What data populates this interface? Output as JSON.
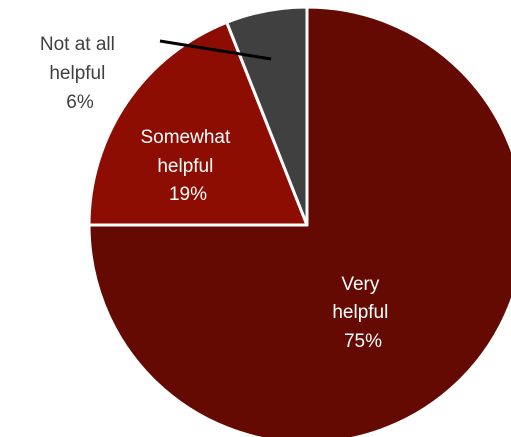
{
  "chart_data": {
    "type": "pie",
    "title": "",
    "start": "12 o'clock",
    "direction": "clockwise",
    "slices": [
      {
        "label_lines": [
          "Very",
          "helpful"
        ],
        "percent_label": "75%",
        "value": 75,
        "color": "#650a02",
        "text_color": "#ffffff"
      },
      {
        "label_lines": [
          "Somewhat",
          "helpful"
        ],
        "percent_label": "19%",
        "value": 19,
        "color": "#8e0d02",
        "text_color": "#ffffff"
      },
      {
        "label_lines": [
          "Not at all",
          "helpful"
        ],
        "percent_label": "6%",
        "value": 6,
        "color": "#404040",
        "text_color": "#404040"
      }
    ],
    "border_color": "#ffffff",
    "leader_line_color": "#000000"
  }
}
